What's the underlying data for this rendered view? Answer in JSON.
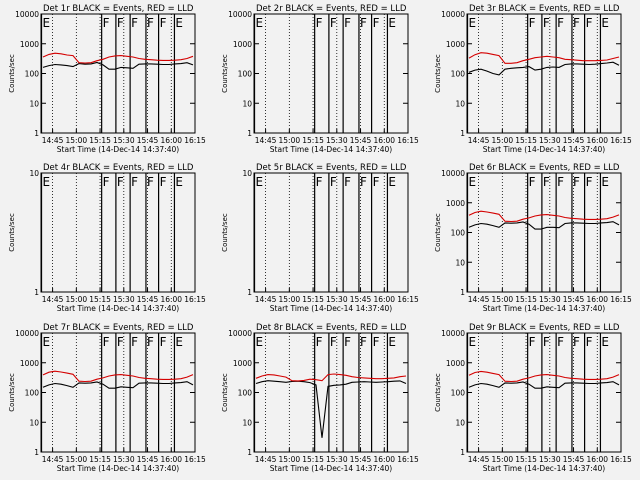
{
  "chart_data": [
    {
      "type": "line",
      "title": "Det 1r BLACK = Events, RED = LLD",
      "xlabel": "Start Time (14-Dec-14 14:37:40)",
      "ylabel": "Counts/sec",
      "yscale": "log",
      "ylim": [
        1,
        10000
      ],
      "xlim": [
        "14:37:40",
        "16:15"
      ],
      "x_ticks": [
        "14:45",
        "15:00",
        "15:15",
        "15:30",
        "15:45",
        "16:00",
        "16:15"
      ],
      "y_ticks": [
        "1",
        "10",
        "100",
        "1000",
        "10000"
      ],
      "markers": [
        {
          "time": "14:38",
          "label": "E"
        },
        {
          "time": "15:16",
          "label": "F"
        },
        {
          "time": "15:25",
          "label": "F"
        },
        {
          "time": "15:34",
          "label": "F"
        },
        {
          "time": "15:44",
          "label": "F"
        },
        {
          "time": "15:52",
          "label": "F"
        },
        {
          "time": "16:02",
          "label": "E"
        }
      ],
      "series": [
        {
          "color": "#000000",
          "values": [
            160,
            185,
            200,
            195,
            185,
            170,
            215,
            205,
            210,
            235,
            195,
            140,
            140,
            160,
            155,
            150,
            205,
            210,
            210,
            205,
            200,
            200,
            210,
            215,
            230,
            195
          ]
        },
        {
          "color": "#d40000",
          "values": [
            360,
            440,
            480,
            460,
            420,
            400,
            230,
            225,
            230,
            270,
            300,
            360,
            390,
            400,
            380,
            360,
            320,
            300,
            290,
            280,
            275,
            275,
            280,
            290,
            320,
            380
          ]
        }
      ]
    },
    {
      "type": "line",
      "title": "Det 2r BLACK = Events, RED = LLD",
      "xlabel": "Start Time (14-Dec-14 14:37:40)",
      "ylabel": "Counts/sec",
      "yscale": "log",
      "ylim": [
        1,
        10000
      ],
      "xlim": [
        "14:37:40",
        "16:15"
      ],
      "x_ticks": [
        "14:45",
        "15:00",
        "15:15",
        "15:30",
        "15:45",
        "16:00",
        "16:15"
      ],
      "y_ticks": [
        "1",
        "10",
        "100",
        "1000",
        "10000"
      ],
      "markers": [
        {
          "time": "14:38",
          "label": "E"
        },
        {
          "time": "15:16",
          "label": "F"
        },
        {
          "time": "15:25",
          "label": "F"
        },
        {
          "time": "15:34",
          "label": "F"
        },
        {
          "time": "15:44",
          "label": "F"
        },
        {
          "time": "15:52",
          "label": "F"
        },
        {
          "time": "16:02",
          "label": "E"
        }
      ],
      "series": []
    },
    {
      "type": "line",
      "title": "Det 3r BLACK = Events, RED = LLD",
      "xlabel": "Start Time (14-Dec-14 14:37:40)",
      "ylabel": "Counts/sec",
      "yscale": "log",
      "ylim": [
        1,
        10000
      ],
      "xlim": [
        "14:37:40",
        "16:15"
      ],
      "x_ticks": [
        "14:45",
        "15:00",
        "15:15",
        "15:30",
        "15:45",
        "16:00",
        "16:15"
      ],
      "y_ticks": [
        "1",
        "10",
        "100",
        "1000",
        "10000"
      ],
      "markers": [
        {
          "time": "14:38",
          "label": "E"
        },
        {
          "time": "15:16",
          "label": "F"
        },
        {
          "time": "15:25",
          "label": "F"
        },
        {
          "time": "15:34",
          "label": "F"
        },
        {
          "time": "15:44",
          "label": "F"
        },
        {
          "time": "15:52",
          "label": "F"
        },
        {
          "time": "16:02",
          "label": "E"
        }
      ],
      "series": [
        {
          "color": "#000000",
          "values": [
            110,
            130,
            140,
            120,
            100,
            90,
            140,
            150,
            155,
            160,
            170,
            130,
            140,
            160,
            165,
            160,
            200,
            210,
            210,
            205,
            200,
            205,
            215,
            225,
            240,
            190
          ]
        },
        {
          "color": "#d40000",
          "values": [
            330,
            430,
            500,
            480,
            440,
            400,
            220,
            220,
            230,
            270,
            300,
            340,
            360,
            380,
            360,
            340,
            300,
            290,
            280,
            270,
            270,
            270,
            275,
            285,
            320,
            360
          ]
        }
      ]
    },
    {
      "type": "line",
      "title": "Det 4r BLACK = Events, RED = LLD",
      "xlabel": "Start Time (14-Dec-14 14:37:40)",
      "ylabel": "Counts/sec",
      "yscale": "log",
      "ylim": [
        1,
        10
      ],
      "xlim": [
        "14:37:40",
        "16:15"
      ],
      "x_ticks": [
        "14:45",
        "15:00",
        "15:15",
        "15:30",
        "15:45",
        "16:00",
        "16:15"
      ],
      "y_ticks": [
        "1",
        "10"
      ],
      "markers": [
        {
          "time": "14:38",
          "label": "E"
        },
        {
          "time": "15:16",
          "label": "F"
        },
        {
          "time": "15:25",
          "label": "F"
        },
        {
          "time": "15:34",
          "label": "F"
        },
        {
          "time": "15:44",
          "label": "F"
        },
        {
          "time": "15:52",
          "label": "F"
        },
        {
          "time": "16:02",
          "label": "E"
        }
      ],
      "series": []
    },
    {
      "type": "line",
      "title": "Det 5r BLACK = Events, RED = LLD",
      "xlabel": "Start Time (14-Dec-14 14:37:40)",
      "ylabel": "Counts/sec",
      "yscale": "log",
      "ylim": [
        1,
        10
      ],
      "xlim": [
        "14:37:40",
        "16:15"
      ],
      "x_ticks": [
        "14:45",
        "15:00",
        "15:15",
        "15:30",
        "15:45",
        "16:00",
        "16:15"
      ],
      "y_ticks": [
        "1",
        "10"
      ],
      "markers": [
        {
          "time": "14:38",
          "label": "E"
        },
        {
          "time": "15:16",
          "label": "F"
        },
        {
          "time": "15:25",
          "label": "F"
        },
        {
          "time": "15:34",
          "label": "F"
        },
        {
          "time": "15:44",
          "label": "F"
        },
        {
          "time": "15:52",
          "label": "F"
        },
        {
          "time": "16:02",
          "label": "E"
        }
      ],
      "series": []
    },
    {
      "type": "line",
      "title": "Det 6r BLACK = Events, RED = LLD",
      "xlabel": "Start Time (14-Dec-14 14:37:40)",
      "ylabel": "Counts/sec",
      "yscale": "log",
      "ylim": [
        1,
        10000
      ],
      "xlim": [
        "14:37:40",
        "16:15"
      ],
      "x_ticks": [
        "14:45",
        "15:00",
        "15:15",
        "15:30",
        "15:45",
        "16:00",
        "16:15"
      ],
      "y_ticks": [
        "1",
        "10",
        "100",
        "1000",
        "10000"
      ],
      "markers": [
        {
          "time": "14:38",
          "label": "E"
        },
        {
          "time": "15:16",
          "label": "F"
        },
        {
          "time": "15:25",
          "label": "F"
        },
        {
          "time": "15:34",
          "label": "F"
        },
        {
          "time": "15:44",
          "label": "F"
        },
        {
          "time": "15:52",
          "label": "F"
        },
        {
          "time": "16:02",
          "label": "E"
        }
      ],
      "series": [
        {
          "color": "#000000",
          "values": [
            150,
            180,
            200,
            190,
            170,
            150,
            210,
            205,
            210,
            225,
            190,
            130,
            130,
            150,
            150,
            145,
            200,
            210,
            210,
            205,
            200,
            200,
            210,
            215,
            230,
            180
          ]
        },
        {
          "color": "#d40000",
          "values": [
            380,
            470,
            520,
            490,
            450,
            410,
            240,
            235,
            240,
            280,
            310,
            360,
            390,
            400,
            380,
            360,
            320,
            300,
            290,
            280,
            275,
            275,
            280,
            290,
            330,
            390
          ]
        }
      ]
    },
    {
      "type": "line",
      "title": "Det 7r BLACK = Events, RED = LLD",
      "xlabel": "Start Time (14-Dec-14 14:37:40)",
      "ylabel": "Counts/sec",
      "yscale": "log",
      "ylim": [
        1,
        10000
      ],
      "xlim": [
        "14:37:40",
        "16:15"
      ],
      "x_ticks": [
        "14:45",
        "15:00",
        "15:15",
        "15:30",
        "15:45",
        "16:00",
        "16:15"
      ],
      "y_ticks": [
        "1",
        "10",
        "100",
        "1000",
        "10000"
      ],
      "markers": [
        {
          "time": "14:38",
          "label": "E"
        },
        {
          "time": "15:16",
          "label": "F"
        },
        {
          "time": "15:25",
          "label": "F"
        },
        {
          "time": "15:34",
          "label": "F"
        },
        {
          "time": "15:44",
          "label": "F"
        },
        {
          "time": "15:52",
          "label": "F"
        },
        {
          "time": "16:02",
          "label": "E"
        }
      ],
      "series": [
        {
          "color": "#000000",
          "values": [
            150,
            180,
            200,
            190,
            170,
            150,
            210,
            205,
            210,
            225,
            190,
            140,
            140,
            155,
            150,
            145,
            205,
            210,
            210,
            205,
            200,
            200,
            210,
            215,
            230,
            180
          ]
        },
        {
          "color": "#d40000",
          "values": [
            390,
            480,
            520,
            490,
            450,
            410,
            240,
            235,
            240,
            280,
            310,
            360,
            390,
            400,
            380,
            360,
            320,
            300,
            290,
            280,
            275,
            275,
            280,
            290,
            330,
            400
          ]
        }
      ]
    },
    {
      "type": "line",
      "title": "Det 8r BLACK = Events, RED = LLD",
      "xlabel": "Start Time (14-Dec-14 14:37:40)",
      "ylabel": "Counts/sec",
      "yscale": "log",
      "ylim": [
        1,
        10000
      ],
      "xlim": [
        "14:37:40",
        "16:15"
      ],
      "x_ticks": [
        "14:45",
        "15:00",
        "15:15",
        "15:30",
        "15:45",
        "16:00",
        "16:15"
      ],
      "y_ticks": [
        "1",
        "10",
        "100",
        "1000",
        "10000"
      ],
      "markers": [
        {
          "time": "14:38",
          "label": "E"
        },
        {
          "time": "15:16",
          "label": "F"
        },
        {
          "time": "15:25",
          "label": "F"
        },
        {
          "time": "15:34",
          "label": "F"
        },
        {
          "time": "15:44",
          "label": "F"
        },
        {
          "time": "15:52",
          "label": "F"
        },
        {
          "time": "16:02",
          "label": "E"
        }
      ],
      "series": [
        {
          "color": "#000000",
          "values": [
            200,
            230,
            250,
            240,
            230,
            220,
            235,
            240,
            230,
            215,
            180,
            3,
            160,
            175,
            180,
            190,
            220,
            225,
            230,
            225,
            220,
            225,
            230,
            240,
            245,
            200
          ]
        },
        {
          "color": "#d40000",
          "values": [
            300,
            360,
            400,
            390,
            360,
            330,
            250,
            245,
            255,
            280,
            270,
            250,
            400,
            420,
            400,
            380,
            340,
            320,
            310,
            300,
            290,
            290,
            300,
            310,
            340,
            360
          ]
        }
      ]
    },
    {
      "type": "line",
      "title": "Det 9r BLACK = Events, RED = LLD",
      "xlabel": "Start Time (14-Dec-14 14:37:40)",
      "ylabel": "Counts/sec",
      "yscale": "log",
      "ylim": [
        1,
        10000
      ],
      "xlim": [
        "14:37:40",
        "16:15"
      ],
      "x_ticks": [
        "14:45",
        "15:00",
        "15:15",
        "15:30",
        "15:45",
        "16:00",
        "16:15"
      ],
      "y_ticks": [
        "1",
        "10",
        "100",
        "1000",
        "10000"
      ],
      "markers": [
        {
          "time": "14:38",
          "label": "E"
        },
        {
          "time": "15:16",
          "label": "F"
        },
        {
          "time": "15:25",
          "label": "F"
        },
        {
          "time": "15:34",
          "label": "F"
        },
        {
          "time": "15:44",
          "label": "F"
        },
        {
          "time": "15:52",
          "label": "F"
        },
        {
          "time": "16:02",
          "label": "E"
        }
      ],
      "series": [
        {
          "color": "#000000",
          "values": [
            150,
            180,
            200,
            190,
            170,
            150,
            210,
            205,
            210,
            225,
            190,
            140,
            140,
            155,
            150,
            145,
            205,
            210,
            210,
            205,
            200,
            200,
            210,
            215,
            230,
            180
          ]
        },
        {
          "color": "#d40000",
          "values": [
            380,
            470,
            510,
            480,
            440,
            400,
            240,
            235,
            240,
            280,
            310,
            360,
            390,
            400,
            380,
            360,
            320,
            300,
            290,
            280,
            275,
            275,
            280,
            290,
            330,
            400
          ]
        }
      ]
    }
  ]
}
